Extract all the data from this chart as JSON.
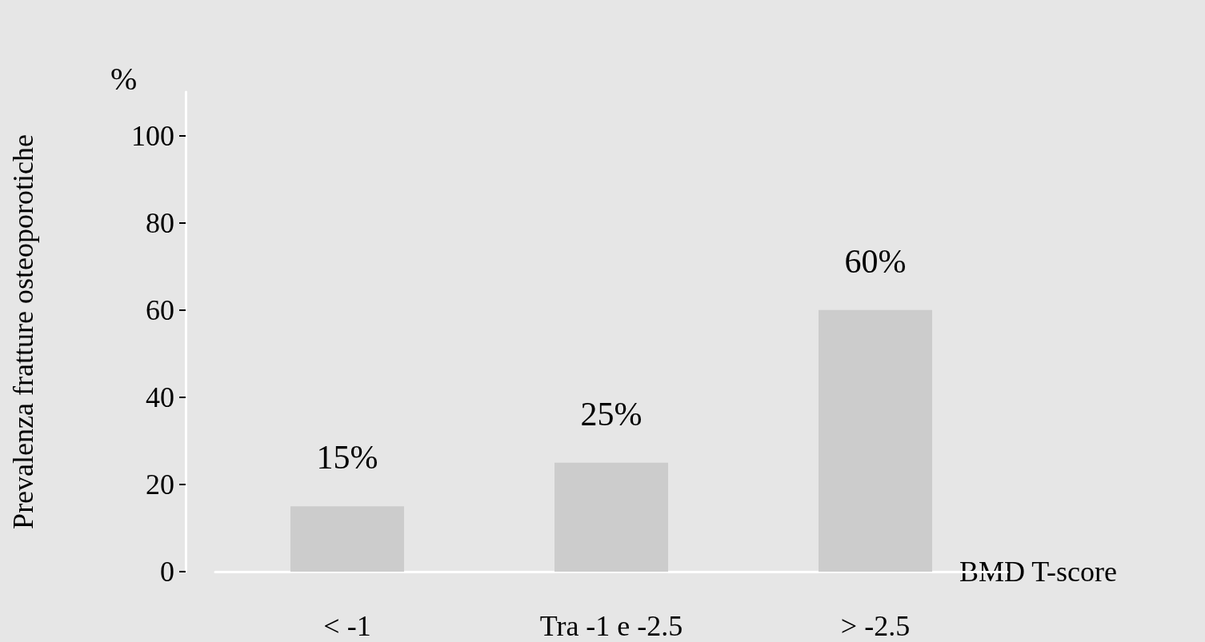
{
  "chart_data": {
    "type": "bar",
    "ylabel": "Prevalenza fratture osteoporotiche",
    "xlabel": "BMD T-score",
    "annotations": [
      "%"
    ],
    "categories": [
      "< -1",
      "Tra -1 e -2.5",
      "> -2.5"
    ],
    "values": [
      15,
      25,
      60
    ],
    "value_labels": [
      "15%",
      "25%",
      "60%"
    ],
    "color": "#cccccc",
    "ylim": [
      0,
      110
    ],
    "yticks": [
      0,
      20,
      40,
      60,
      80,
      100
    ],
    "grid": false
  }
}
